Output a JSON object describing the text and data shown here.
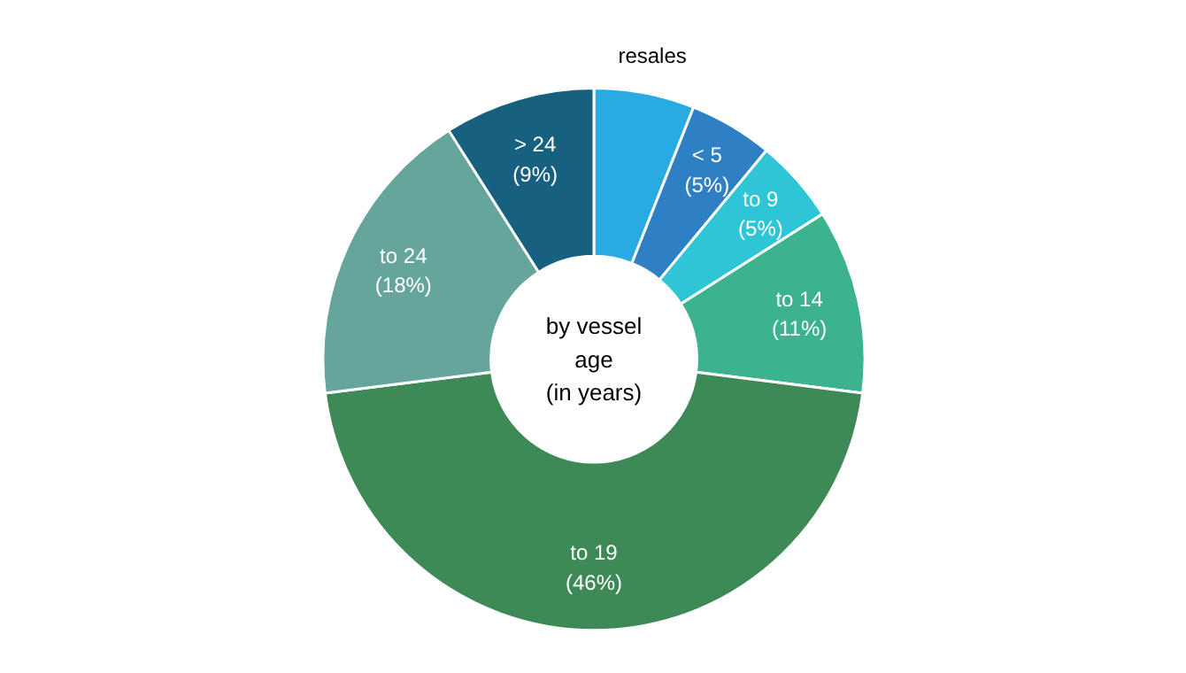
{
  "chart_data": {
    "type": "donut",
    "title": "by vessel\nage\n(in years)",
    "categories": [
      "resales",
      "< 5",
      "to 9",
      "to 14",
      "to 19",
      "to 24",
      "> 24"
    ],
    "values": [
      6,
      5,
      5,
      11,
      46,
      18,
      9
    ],
    "value_labels": [
      null,
      "(5%)",
      "(5%)",
      "(11%)",
      "(46%)",
      "(18%)",
      "(9%)"
    ],
    "colors": [
      "#29abe2",
      "#2e7fc4",
      "#2ec6d6",
      "#3db28e",
      "#3e8a56",
      "#66a59c",
      "#17607f"
    ]
  }
}
